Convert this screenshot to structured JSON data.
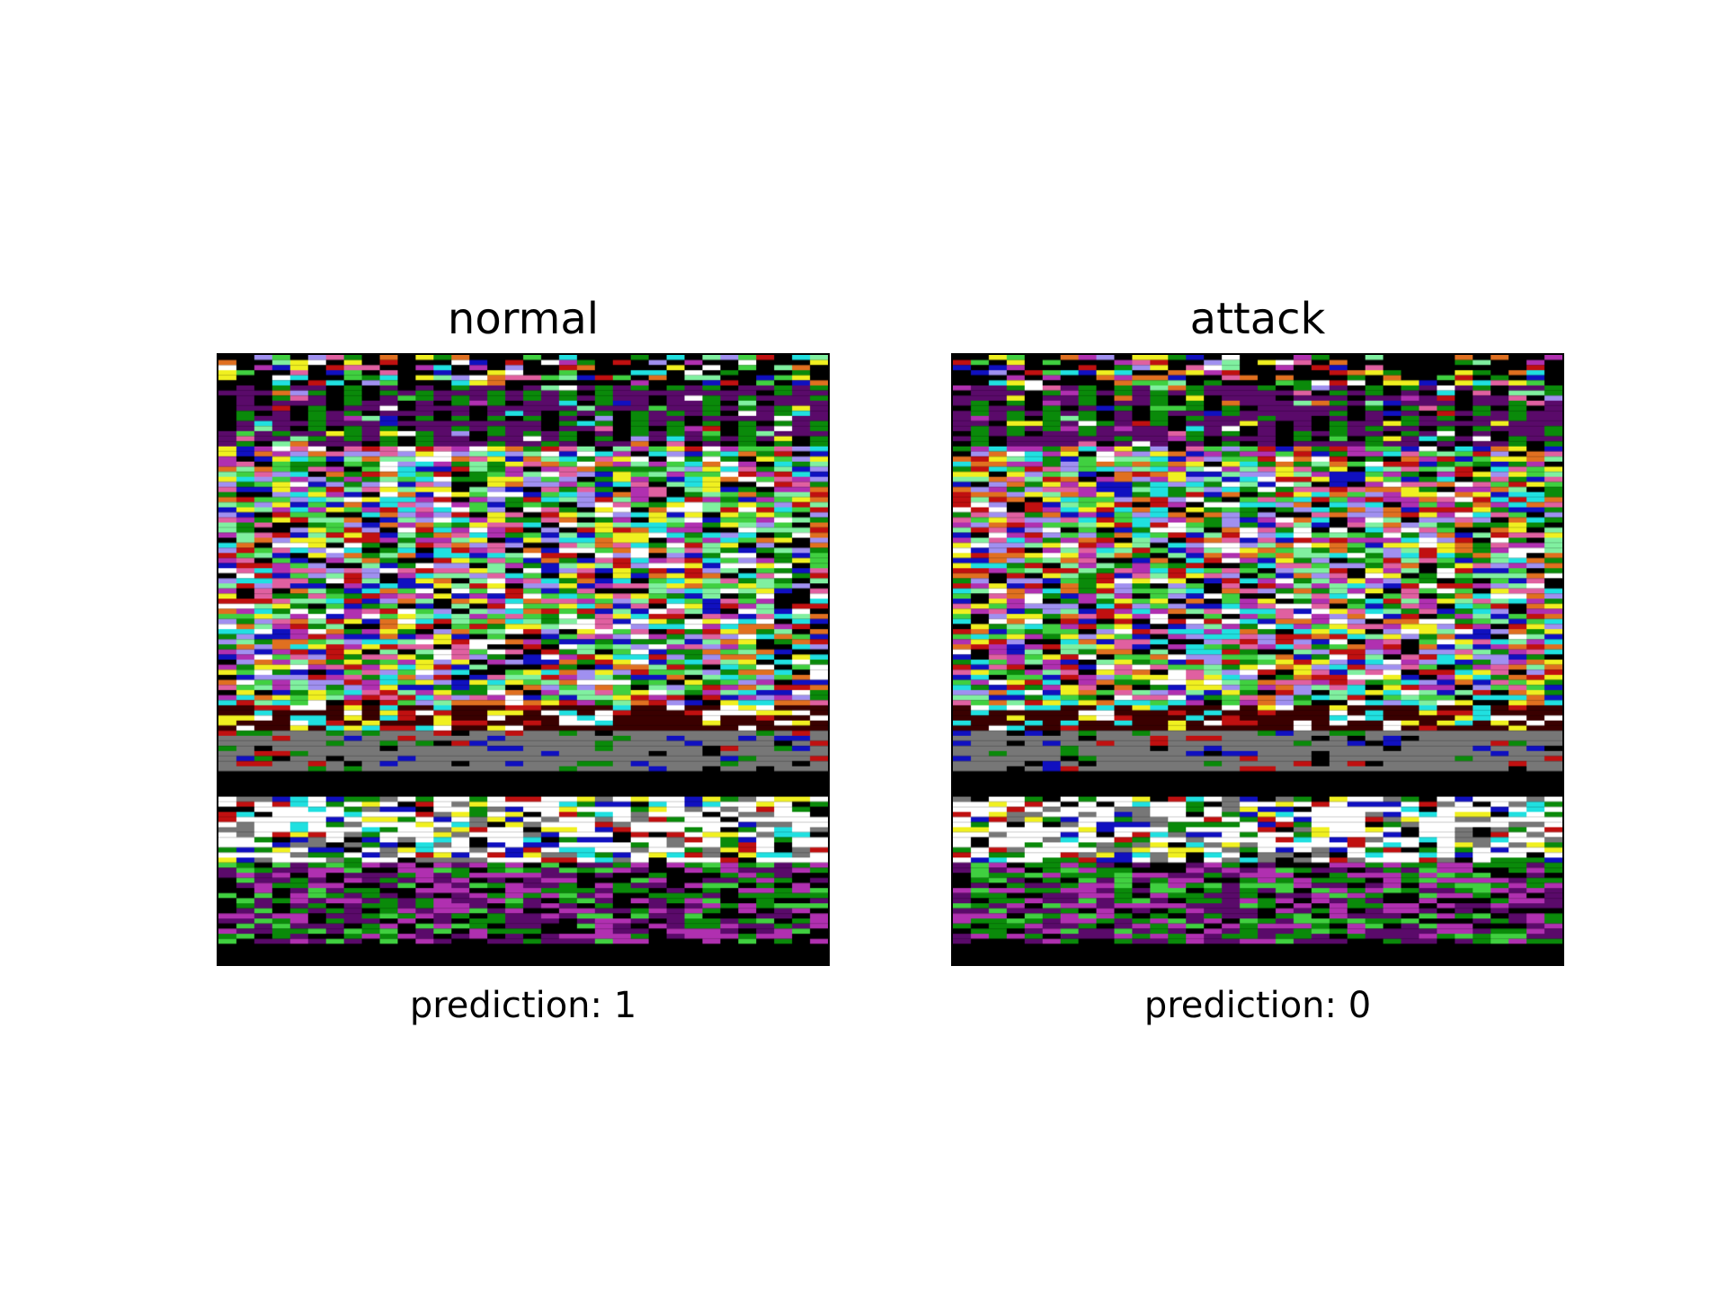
{
  "panels": [
    {
      "id": "normal",
      "title": "normal",
      "caption": "prediction: 1"
    },
    {
      "id": "attack",
      "title": "attack",
      "caption": "prediction: 0"
    }
  ],
  "palette": {
    "black": "#000000",
    "white": "#ffffff",
    "gray": "#777777",
    "purple": "#5a0a6a",
    "magenta": "#b030b0",
    "green": "#0a8a0a",
    "lime": "#40d040",
    "blue": "#1010c0",
    "red": "#c01010",
    "pink": "#e060a0",
    "cyan": "#20e0e0",
    "yellow": "#f0f020",
    "orange": "#e07020",
    "lightgreen": "#80f0a0",
    "lavender": "#a090f0"
  }
}
